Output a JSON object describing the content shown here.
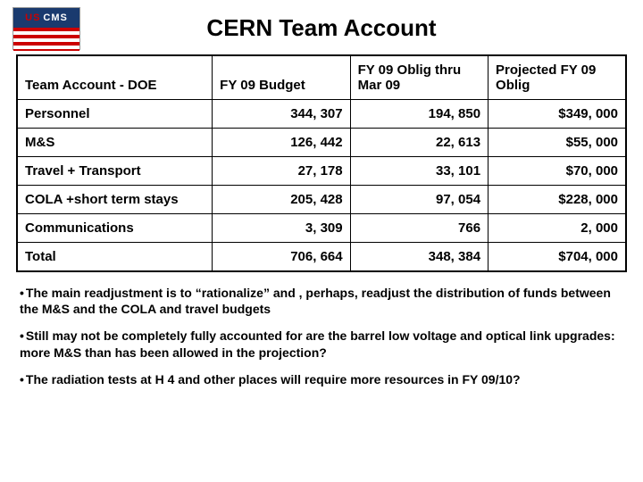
{
  "title": "CERN Team Account",
  "logo": {
    "us": "US",
    "cms": "CMS"
  },
  "table": {
    "headers": [
      "Team Account - DOE",
      "FY 09 Budget",
      "FY 09 Oblig thru Mar 09",
      "Projected FY 09 Oblig"
    ],
    "rows": [
      [
        "Personnel",
        "344, 307",
        "194, 850",
        "$349, 000"
      ],
      [
        "M&S",
        "126, 442",
        "22, 613",
        "$55, 000"
      ],
      [
        "Travel + Transport",
        "27, 178",
        "33, 101",
        "$70, 000"
      ],
      [
        "COLA +short term stays",
        "205, 428",
        "97, 054",
        "$228, 000"
      ],
      [
        "Communications",
        "3, 309",
        "766",
        "2, 000"
      ],
      [
        "Total",
        "706, 664",
        "348, 384",
        "$704, 000"
      ]
    ]
  },
  "bullets": [
    "The main readjustment is to “rationalize” and , perhaps, readjust the distribution of funds between the M&S  and the COLA and travel budgets",
    "Still may not be completely fully accounted for are the barrel low voltage and optical link upgrades: more M&S than has been allowed in the projection?",
    "The radiation tests at H 4 and other places will require more resources in FY 09/10?"
  ]
}
